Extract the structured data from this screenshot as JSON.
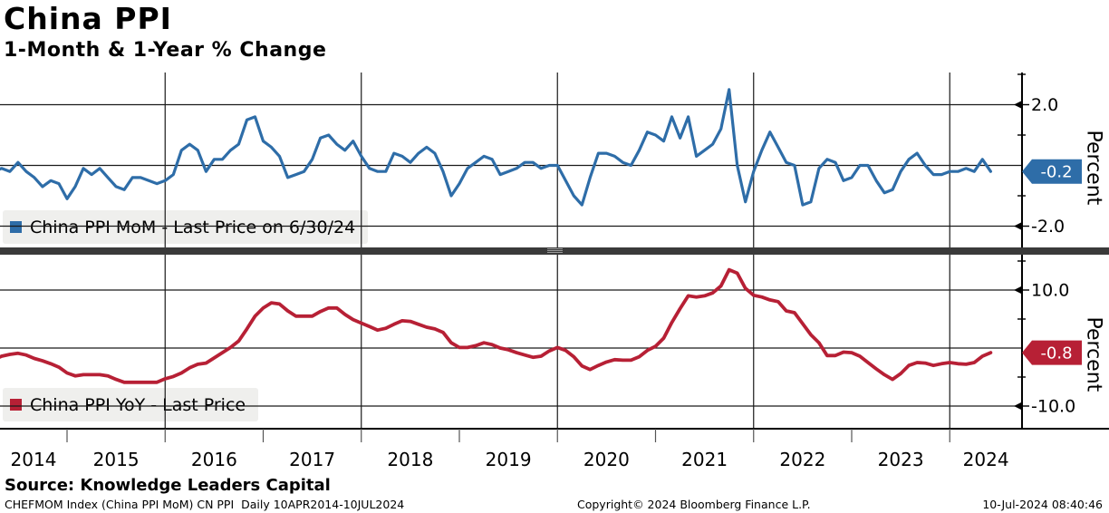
{
  "title": "China PPI",
  "subtitle": "1-Month & 1-Year % Change",
  "top_panel": {
    "legend": "China PPI MoM - Last Price on 6/30/24",
    "axis_label": "Percent",
    "last_value_label": "-0.2",
    "tick_labels": [
      "2.0",
      "-2.0"
    ]
  },
  "bottom_panel": {
    "legend": "China PPI YoY - Last Price",
    "axis_label": "Percent",
    "last_value_label": "-0.8",
    "tick_labels": [
      "10.0",
      "-10.0"
    ]
  },
  "x_axis": {
    "years": [
      "2014",
      "2015",
      "2016",
      "2017",
      "2018",
      "2019",
      "2020",
      "2021",
      "2022",
      "2023",
      "2024"
    ]
  },
  "source_line": "Source: Knowledge Leaders Capital",
  "footer": {
    "left": "CHEFMOM Index (China PPI MoM) CN PPI  Daily 10APR2014-10JUL2024",
    "center": "Copyright© 2024 Bloomberg Finance L.P.",
    "right": "10-Jul-2024 08:40:46"
  },
  "colors": {
    "mom_blue": "#2e6da8",
    "yoy_red": "#b72035",
    "grid": "#1a1a1a",
    "separator": "#3a3a3a",
    "legend_bg": "#efefed",
    "badge_text": "#ffffff"
  },
  "chart_data": [
    {
      "type": "line",
      "name": "China PPI MoM",
      "panel": "top",
      "color": "#2e6da8",
      "start": "2014-04",
      "end": "2024-06",
      "freq": "monthly",
      "ylabel": "Percent",
      "ylim": [
        -2.8,
        3.05
      ],
      "yticks": [
        2.0,
        -2.0
      ],
      "minor_yticks": [
        3.0,
        1.0,
        -1.0
      ],
      "last_price": -0.2,
      "last_date": "6/30/24",
      "values": [
        -0.2,
        -0.1,
        -0.2,
        0.1,
        -0.2,
        -0.4,
        -0.7,
        -0.5,
        -0.6,
        -1.1,
        -0.7,
        -0.1,
        -0.3,
        -0.1,
        -0.4,
        -0.7,
        -0.8,
        -0.4,
        -0.4,
        -0.5,
        -0.6,
        -0.5,
        -0.3,
        0.5,
        0.7,
        0.5,
        -0.2,
        0.2,
        0.2,
        0.5,
        0.7,
        1.5,
        1.6,
        0.8,
        0.6,
        0.3,
        -0.4,
        -0.3,
        -0.2,
        0.2,
        0.9,
        1.0,
        0.7,
        0.5,
        0.8,
        0.3,
        -0.1,
        -0.2,
        -0.2,
        0.4,
        0.3,
        0.1,
        0.4,
        0.6,
        0.4,
        -0.2,
        -1.0,
        -0.6,
        -0.1,
        0.1,
        0.3,
        0.2,
        -0.3,
        -0.2,
        -0.1,
        0.1,
        0.1,
        -0.1,
        0.0,
        0.0,
        -0.5,
        -1.0,
        -1.3,
        -0.4,
        0.4,
        0.4,
        0.3,
        0.1,
        0.0,
        0.5,
        1.1,
        1.0,
        0.8,
        1.6,
        0.9,
        1.6,
        0.3,
        0.5,
        0.7,
        1.2,
        2.5,
        0.0,
        -1.2,
        -0.2,
        0.5,
        1.1,
        0.6,
        0.1,
        0.0,
        -1.3,
        -1.2,
        -0.1,
        0.2,
        0.1,
        -0.5,
        -0.4,
        0.0,
        0.0,
        -0.5,
        -0.9,
        -0.8,
        -0.2,
        0.2,
        0.4,
        0.0,
        -0.3,
        -0.3,
        -0.2,
        -0.2,
        -0.1,
        -0.2,
        0.2,
        -0.2
      ]
    },
    {
      "type": "line",
      "name": "China PPI YoY",
      "panel": "bottom",
      "color": "#b72035",
      "start": "2014-04",
      "end": "2024-06",
      "freq": "monthly",
      "ylabel": "Percent",
      "ylim": [
        -16.3,
        16.2
      ],
      "yticks": [
        10.0,
        -10.0
      ],
      "minor_yticks": [
        15.0,
        5.0,
        -5.0
      ],
      "last_price": -0.8,
      "values": [
        -2.0,
        -1.4,
        -1.1,
        -0.9,
        -1.2,
        -1.8,
        -2.2,
        -2.7,
        -3.3,
        -4.3,
        -4.8,
        -4.6,
        -4.6,
        -4.6,
        -4.8,
        -5.4,
        -5.9,
        -5.9,
        -5.9,
        -5.9,
        -5.9,
        -5.3,
        -4.9,
        -4.3,
        -3.4,
        -2.8,
        -2.6,
        -1.7,
        -0.8,
        0.1,
        1.2,
        3.3,
        5.5,
        6.9,
        7.8,
        7.6,
        6.4,
        5.5,
        5.5,
        5.5,
        6.3,
        6.9,
        6.9,
        5.8,
        4.9,
        4.3,
        3.7,
        3.1,
        3.4,
        4.1,
        4.7,
        4.6,
        4.1,
        3.6,
        3.3,
        2.7,
        0.9,
        0.1,
        0.1,
        0.4,
        0.9,
        0.6,
        0.0,
        -0.3,
        -0.8,
        -1.2,
        -1.6,
        -1.4,
        -0.5,
        0.1,
        -0.4,
        -1.5,
        -3.1,
        -3.7,
        -3.0,
        -2.4,
        -2.0,
        -2.1,
        -2.1,
        -1.5,
        -0.4,
        0.3,
        1.7,
        4.4,
        6.8,
        9.0,
        8.8,
        9.0,
        9.5,
        10.7,
        13.5,
        12.9,
        10.3,
        9.1,
        8.8,
        8.3,
        8.0,
        6.4,
        6.1,
        4.2,
        2.3,
        0.9,
        -1.3,
        -1.3,
        -0.7,
        -0.8,
        -1.4,
        -2.5,
        -3.6,
        -4.6,
        -5.4,
        -4.4,
        -3.0,
        -2.5,
        -2.6,
        -3.0,
        -2.7,
        -2.5,
        -2.7,
        -2.8,
        -2.5,
        -1.4,
        -0.8
      ]
    }
  ]
}
